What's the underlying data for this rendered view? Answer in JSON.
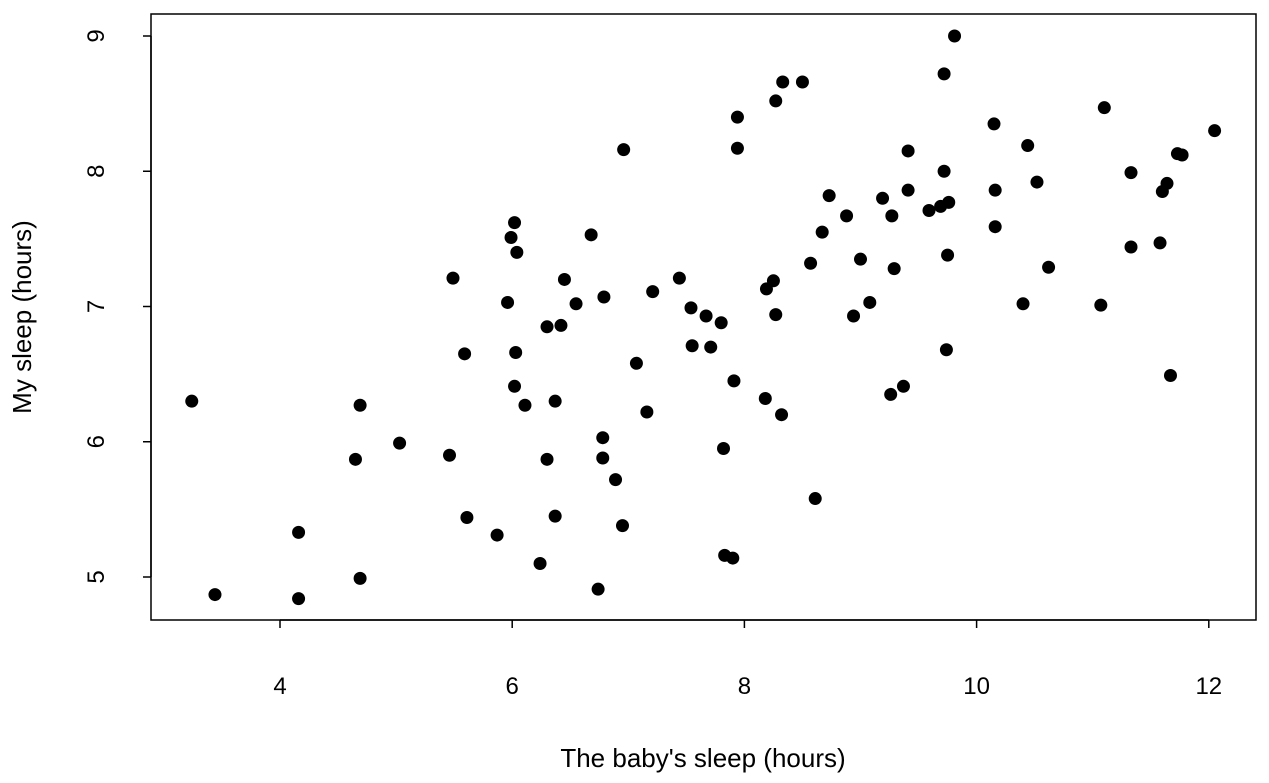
{
  "chart_data": {
    "type": "scatter",
    "title": "",
    "xlabel": "The baby's sleep (hours)",
    "ylabel": "My sleep (hours)",
    "xlim": [
      3,
      12.5
    ],
    "ylim": [
      4.75,
      9.1
    ],
    "xticks": [
      4,
      6,
      8,
      10,
      12
    ],
    "yticks": [
      5,
      6,
      7,
      8,
      9
    ],
    "grid": false,
    "point_color": "#000000",
    "points": [
      [
        3.24,
        6.3
      ],
      [
        3.44,
        4.87
      ],
      [
        4.16,
        5.33
      ],
      [
        4.16,
        4.84
      ],
      [
        4.65,
        5.87
      ],
      [
        4.69,
        6.27
      ],
      [
        4.69,
        4.99
      ],
      [
        5.03,
        5.99
      ],
      [
        5.46,
        5.9
      ],
      [
        5.49,
        7.21
      ],
      [
        5.59,
        6.65
      ],
      [
        5.61,
        5.44
      ],
      [
        5.87,
        5.31
      ],
      [
        5.96,
        7.03
      ],
      [
        5.99,
        7.51
      ],
      [
        6.02,
        7.62
      ],
      [
        6.04,
        7.4
      ],
      [
        6.03,
        6.66
      ],
      [
        6.02,
        6.41
      ],
      [
        6.11,
        6.27
      ],
      [
        6.24,
        5.1
      ],
      [
        6.3,
        5.87
      ],
      [
        6.3,
        6.85
      ],
      [
        6.37,
        6.3
      ],
      [
        6.37,
        5.45
      ],
      [
        6.42,
        6.86
      ],
      [
        6.45,
        7.2
      ],
      [
        6.55,
        7.02
      ],
      [
        6.68,
        7.53
      ],
      [
        6.74,
        4.91
      ],
      [
        6.78,
        6.03
      ],
      [
        6.78,
        5.88
      ],
      [
        6.79,
        7.07
      ],
      [
        6.89,
        5.72
      ],
      [
        6.95,
        5.38
      ],
      [
        6.96,
        8.16
      ],
      [
        7.07,
        6.58
      ],
      [
        7.16,
        6.22
      ],
      [
        7.21,
        7.11
      ],
      [
        7.44,
        7.21
      ],
      [
        7.54,
        6.99
      ],
      [
        7.55,
        6.71
      ],
      [
        7.67,
        6.93
      ],
      [
        7.71,
        6.7
      ],
      [
        7.8,
        6.88
      ],
      [
        7.82,
        5.95
      ],
      [
        7.83,
        5.16
      ],
      [
        7.9,
        5.14
      ],
      [
        7.91,
        6.45
      ],
      [
        7.94,
        8.17
      ],
      [
        7.94,
        8.4
      ],
      [
        8.18,
        6.32
      ],
      [
        8.19,
        7.13
      ],
      [
        8.25,
        7.19
      ],
      [
        8.27,
        8.52
      ],
      [
        8.27,
        6.94
      ],
      [
        8.32,
        6.2
      ],
      [
        8.33,
        8.66
      ],
      [
        8.5,
        8.66
      ],
      [
        8.57,
        7.32
      ],
      [
        8.61,
        5.58
      ],
      [
        8.67,
        7.55
      ],
      [
        8.73,
        7.82
      ],
      [
        8.88,
        7.67
      ],
      [
        8.94,
        6.93
      ],
      [
        9.0,
        7.35
      ],
      [
        9.08,
        7.03
      ],
      [
        9.19,
        7.8
      ],
      [
        9.26,
        6.35
      ],
      [
        9.27,
        7.67
      ],
      [
        9.29,
        7.28
      ],
      [
        9.37,
        6.41
      ],
      [
        9.41,
        8.15
      ],
      [
        9.41,
        7.86
      ],
      [
        9.59,
        7.71
      ],
      [
        9.69,
        7.74
      ],
      [
        9.72,
        8.0
      ],
      [
        9.72,
        8.72
      ],
      [
        9.74,
        6.68
      ],
      [
        9.75,
        7.38
      ],
      [
        9.76,
        7.77
      ],
      [
        9.81,
        9.0
      ],
      [
        10.15,
        8.35
      ],
      [
        10.16,
        7.86
      ],
      [
        10.16,
        7.59
      ],
      [
        10.4,
        7.02
      ],
      [
        10.44,
        8.19
      ],
      [
        10.52,
        7.92
      ],
      [
        10.62,
        7.29
      ],
      [
        11.07,
        7.01
      ],
      [
        11.1,
        8.47
      ],
      [
        11.33,
        7.99
      ],
      [
        11.33,
        7.44
      ],
      [
        11.58,
        7.47
      ],
      [
        11.6,
        7.85
      ],
      [
        11.64,
        7.91
      ],
      [
        11.67,
        6.49
      ],
      [
        11.73,
        8.13
      ],
      [
        11.77,
        8.12
      ],
      [
        12.05,
        8.3
      ]
    ]
  }
}
